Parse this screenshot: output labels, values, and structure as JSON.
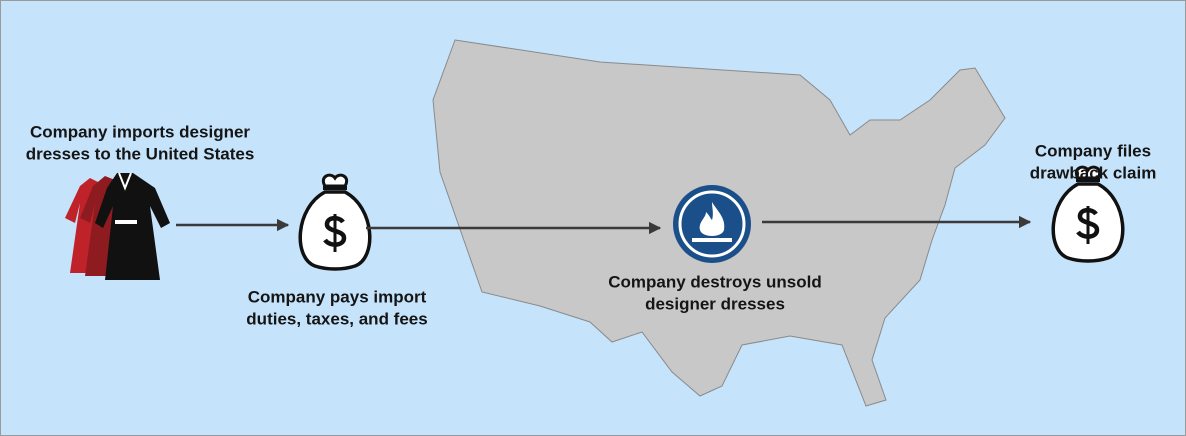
{
  "steps": [
    {
      "lines": [
        "Company imports designer",
        "dresses to the United States"
      ]
    },
    {
      "lines": [
        "Company pays import",
        "duties, taxes, and fees"
      ]
    },
    {
      "lines": [
        "Company destroys unsold",
        "designer dresses"
      ]
    },
    {
      "lines": [
        "Company files",
        "drawback claim"
      ]
    }
  ]
}
